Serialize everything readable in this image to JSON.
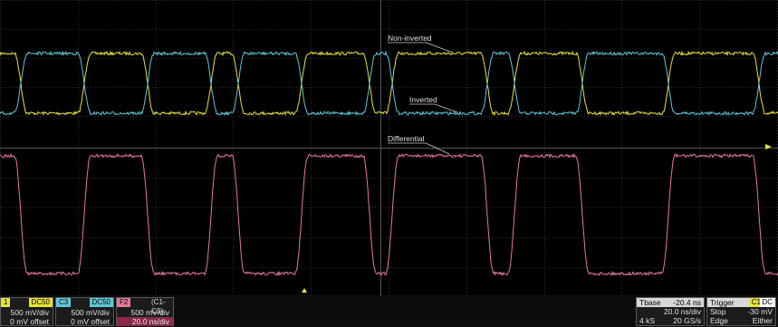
{
  "colors": {
    "c1": "#e8e23a",
    "c3": "#5fc8d8",
    "f2": "#e8789a",
    "grid": "#3a3a3a",
    "marker": "#e8e23a",
    "label_bg": "#000000"
  },
  "labels": {
    "non_inverted": "Non-inverted",
    "inverted": "Inverted",
    "differential": "Differential"
  },
  "waveforms": {
    "transitions": [
      23,
      93,
      163,
      233,
      263,
      333,
      408,
      433,
      538,
      568,
      643,
      738,
      838
    ],
    "start_high": true
  },
  "channels": {
    "c1": {
      "id": "1",
      "coupling": "DC50",
      "vdiv": "500 mV/div",
      "offset": "0 mV offset"
    },
    "c3": {
      "id": "C3",
      "coupling": "DC50",
      "vdiv": "500 mV/div",
      "offset": "0 mV offset"
    },
    "f2": {
      "id": "F2",
      "math": "(C1-C3)",
      "vdiv": "500 mV/div",
      "hdiv": "20.0 ns/div"
    }
  },
  "timebase": {
    "label": "Tbase",
    "delay": "-20.4 ns",
    "hdiv": "20.0 ns/div",
    "samples": "4 kS",
    "rate": "20 GS/s"
  },
  "trigger": {
    "label": "Trigger",
    "source": "C1",
    "coupling": "DC",
    "mode": "Stop",
    "level": "-30 mV",
    "type": "Edge",
    "slope": "Either"
  }
}
